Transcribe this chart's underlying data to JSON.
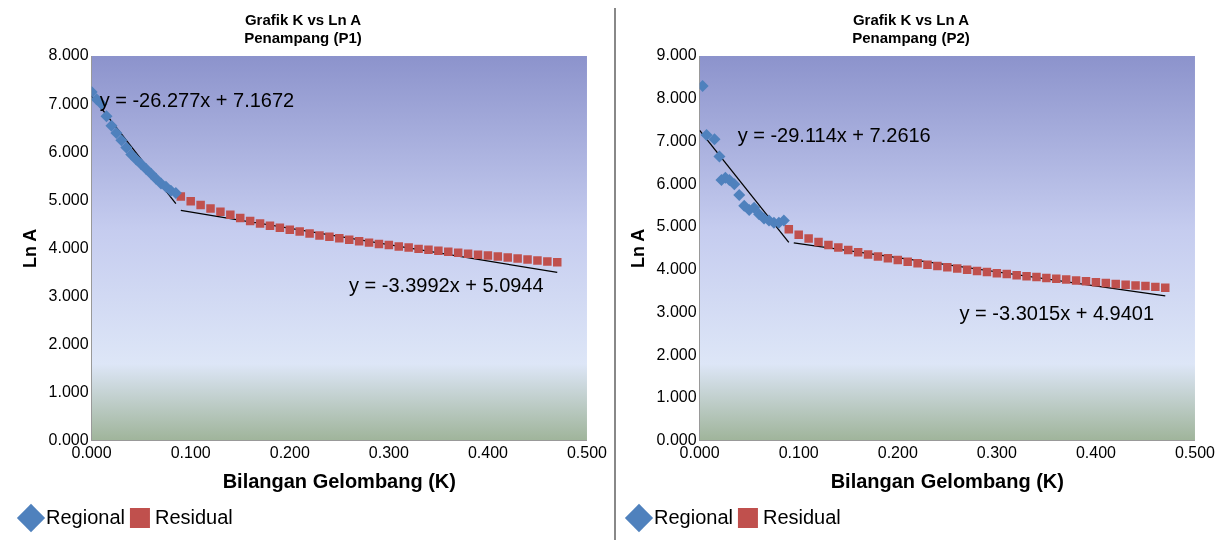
{
  "chart_data": [
    {
      "type": "scatter",
      "title": "Grafik K vs Ln A",
      "subtitle": "Penampang (P1)",
      "xlabel": "Bilangan Gelombang (K)",
      "ylabel": "Ln A",
      "legend": "bottom",
      "grid": false,
      "xlim": [
        0,
        0.5
      ],
      "xticks": [
        {
          "value": 0,
          "label": "0.000"
        },
        {
          "value": 0.1,
          "label": "0.100"
        },
        {
          "value": 0.2,
          "label": "0.200"
        },
        {
          "value": 0.3,
          "label": "0.300"
        },
        {
          "value": 0.4,
          "label": "0.400"
        },
        {
          "value": 0.5,
          "label": "0.500"
        }
      ],
      "ylim": [
        0,
        8
      ],
      "yticks": [
        {
          "value": 0,
          "label": "0.000"
        },
        {
          "value": 1,
          "label": "1.000"
        },
        {
          "value": 2,
          "label": "2.000"
        },
        {
          "value": 3,
          "label": "3.000"
        },
        {
          "value": 4,
          "label": "4.000"
        },
        {
          "value": 5,
          "label": "5.000"
        },
        {
          "value": 6,
          "label": "6.000"
        },
        {
          "value": 7,
          "label": "7.000"
        },
        {
          "value": 8,
          "label": "8.000"
        }
      ],
      "series": [
        {
          "name": "Regional",
          "color": "#4f81bd",
          "marker": "diamond",
          "x": [
            0,
            0.005,
            0.01,
            0.015,
            0.02,
            0.025,
            0.03,
            0.035,
            0.04,
            0.045,
            0.05,
            0.055,
            0.06,
            0.065,
            0.07,
            0.075,
            0.08,
            0.085
          ],
          "values": [
            7.25,
            7.1,
            7.0,
            6.75,
            6.55,
            6.4,
            6.25,
            6.1,
            5.95,
            5.85,
            5.75,
            5.65,
            5.55,
            5.45,
            5.35,
            5.28,
            5.2,
            5.15
          ]
        },
        {
          "name": "Residual",
          "color": "#c0504d",
          "marker": "square",
          "x": [
            0.09,
            0.1,
            0.11,
            0.12,
            0.13,
            0.14,
            0.15,
            0.16,
            0.17,
            0.18,
            0.19,
            0.2,
            0.21,
            0.22,
            0.23,
            0.24,
            0.25,
            0.26,
            0.27,
            0.28,
            0.29,
            0.3,
            0.31,
            0.32,
            0.33,
            0.34,
            0.35,
            0.36,
            0.37,
            0.38,
            0.39,
            0.4,
            0.41,
            0.42,
            0.43,
            0.44,
            0.45,
            0.46,
            0.47
          ],
          "values": [
            5.08,
            4.98,
            4.9,
            4.83,
            4.76,
            4.7,
            4.63,
            4.57,
            4.52,
            4.47,
            4.43,
            4.39,
            4.35,
            4.31,
            4.27,
            4.24,
            4.21,
            4.18,
            4.15,
            4.12,
            4.09,
            4.07,
            4.04,
            4.02,
            3.99,
            3.97,
            3.95,
            3.93,
            3.91,
            3.89,
            3.87,
            3.85,
            3.83,
            3.81,
            3.79,
            3.77,
            3.75,
            3.73,
            3.71
          ]
        },
        {
          "type": "line",
          "color": "#000000",
          "marker": "none",
          "x": [
            0,
            0.085
          ],
          "values": [
            7.17,
            4.93
          ]
        },
        {
          "type": "line",
          "color": "#000000",
          "marker": "none",
          "x": [
            0.09,
            0.47
          ],
          "values": [
            4.79,
            3.5
          ]
        }
      ],
      "annotations": [
        "y = -26.277x + 7.1672",
        "y = -3.3992x + 5.0944"
      ]
    },
    {
      "type": "scatter",
      "title": "Grafik K vs Ln A",
      "subtitle": "Penampang (P2)",
      "xlabel": "Bilangan Gelombang (K)",
      "ylabel": "Ln A",
      "legend": "bottom",
      "grid": false,
      "xlim": [
        0,
        0.5
      ],
      "xticks": [
        {
          "value": 0,
          "label": "0.000"
        },
        {
          "value": 0.1,
          "label": "0.100"
        },
        {
          "value": 0.2,
          "label": "0.200"
        },
        {
          "value": 0.3,
          "label": "0.300"
        },
        {
          "value": 0.4,
          "label": "0.400"
        },
        {
          "value": 0.5,
          "label": "0.500"
        }
      ],
      "ylim": [
        0,
        9
      ],
      "yticks": [
        {
          "value": 0,
          "label": "0.000"
        },
        {
          "value": 1,
          "label": "1.000"
        },
        {
          "value": 2,
          "label": "2.000"
        },
        {
          "value": 3,
          "label": "3.000"
        },
        {
          "value": 4,
          "label": "4.000"
        },
        {
          "value": 5,
          "label": "5.000"
        },
        {
          "value": 6,
          "label": "6.000"
        },
        {
          "value": 7,
          "label": "7.000"
        },
        {
          "value": 8,
          "label": "8.000"
        },
        {
          "value": 9,
          "label": "9.000"
        }
      ],
      "series": [
        {
          "name": "Regional",
          "color": "#4f81bd",
          "marker": "diamond",
          "x": [
            0.003,
            0.007,
            0.015,
            0.02,
            0.022,
            0.026,
            0.03,
            0.035,
            0.04,
            0.045,
            0.05,
            0.055,
            0.06,
            0.065,
            0.07,
            0.075,
            0.08,
            0.085
          ],
          "values": [
            8.3,
            7.15,
            7.05,
            6.65,
            6.1,
            6.15,
            6.1,
            6.0,
            5.75,
            5.5,
            5.4,
            5.45,
            5.3,
            5.2,
            5.15,
            5.1,
            5.1,
            5.15
          ]
        },
        {
          "name": "Residual",
          "color": "#c0504d",
          "marker": "square",
          "x": [
            0.09,
            0.1,
            0.11,
            0.12,
            0.13,
            0.14,
            0.15,
            0.16,
            0.17,
            0.18,
            0.19,
            0.2,
            0.21,
            0.22,
            0.23,
            0.24,
            0.25,
            0.26,
            0.27,
            0.28,
            0.29,
            0.3,
            0.31,
            0.32,
            0.33,
            0.34,
            0.35,
            0.36,
            0.37,
            0.38,
            0.39,
            0.4,
            0.41,
            0.42,
            0.43,
            0.44,
            0.45,
            0.46,
            0.47
          ],
          "values": [
            4.95,
            4.82,
            4.73,
            4.65,
            4.58,
            4.52,
            4.46,
            4.41,
            4.36,
            4.31,
            4.27,
            4.23,
            4.19,
            4.15,
            4.12,
            4.09,
            4.06,
            4.03,
            4.0,
            3.97,
            3.95,
            3.92,
            3.9,
            3.87,
            3.85,
            3.83,
            3.81,
            3.79,
            3.77,
            3.75,
            3.73,
            3.71,
            3.69,
            3.67,
            3.65,
            3.63,
            3.62,
            3.6,
            3.58
          ]
        },
        {
          "type": "line",
          "color": "#000000",
          "marker": "none",
          "x": [
            0,
            0.09
          ],
          "values": [
            7.26,
            4.64
          ]
        },
        {
          "type": "line",
          "color": "#000000",
          "marker": "none",
          "x": [
            0.095,
            0.47
          ],
          "values": [
            4.63,
            3.39
          ]
        }
      ],
      "annotations": [
        "y = -29.114x + 7.2616",
        "y = -3.3015x + 4.9401"
      ]
    }
  ]
}
